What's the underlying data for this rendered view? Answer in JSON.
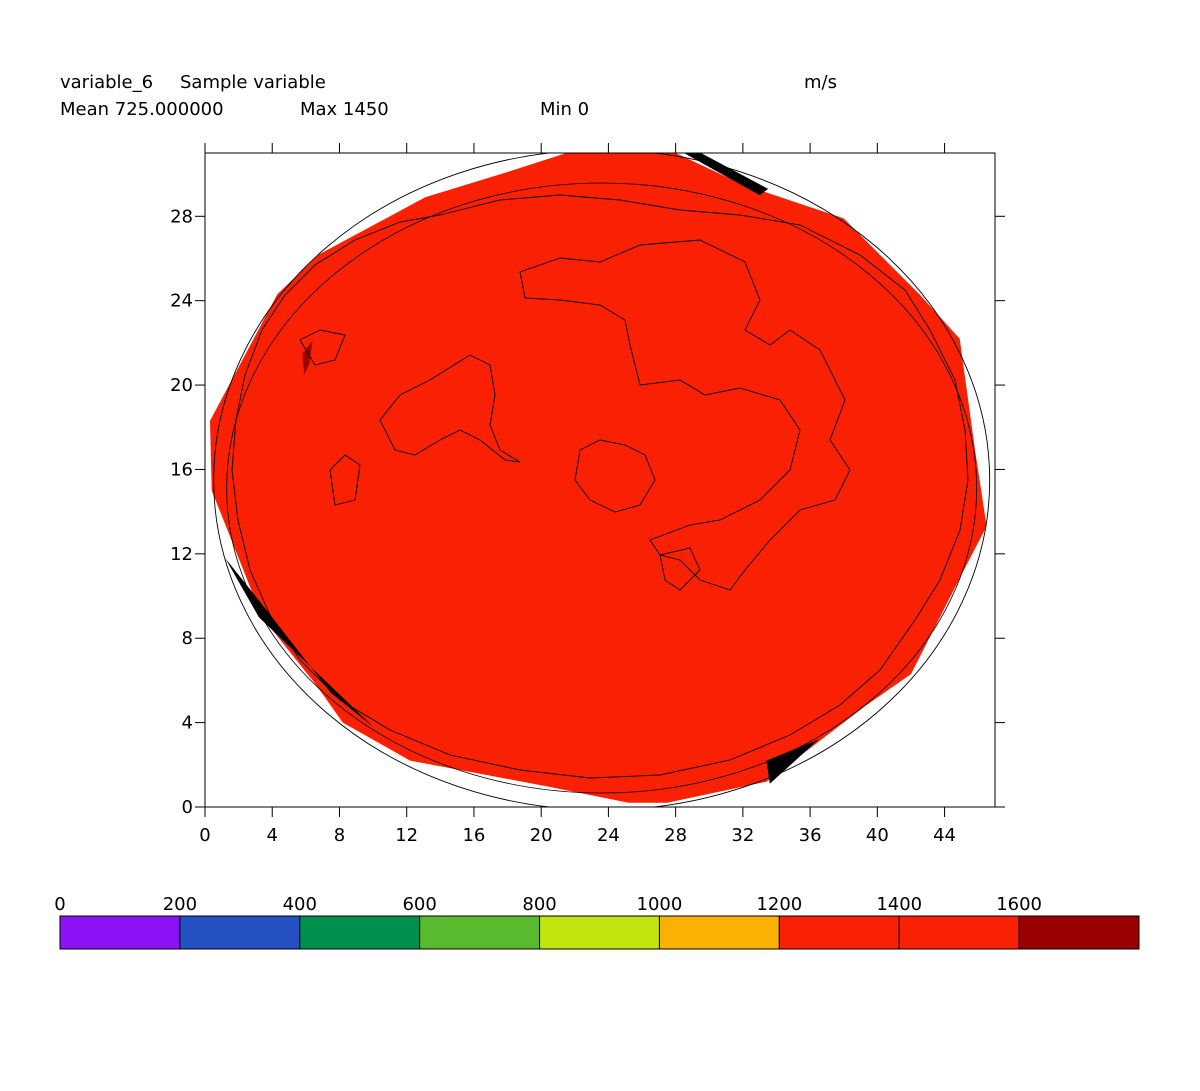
{
  "header": {
    "variable_name": "variable_6",
    "variable_desc": "Sample variable",
    "units": "m/s",
    "mean_text": "Mean 725.000000",
    "max_text": "Max 1450",
    "min_text": "Min 0"
  },
  "colors": {
    "field": "#fa2003",
    "dark_patch": "#9a0000",
    "missing": "#000000",
    "outline": "#000000"
  },
  "chart_data": {
    "type": "heatmap",
    "title": "variable_6 Sample variable",
    "units": "m/s",
    "xlabel": "",
    "ylabel": "",
    "xlim": [
      0,
      47
    ],
    "ylim": [
      0,
      31
    ],
    "x_ticks": [
      0,
      4,
      8,
      12,
      16,
      20,
      24,
      28,
      32,
      36,
      40,
      44
    ],
    "y_ticks": [
      0,
      4,
      8,
      12,
      16,
      20,
      24,
      28
    ],
    "grid": false,
    "stats": {
      "mean": 725.0,
      "max": 1450,
      "min": 0
    },
    "field_value_range": [
      1200,
      1400
    ],
    "domain_polygon": [
      [
        21.5,
        31
      ],
      [
        28,
        31
      ],
      [
        32,
        29.5
      ],
      [
        38,
        27.9
      ],
      [
        42.5,
        24.3
      ],
      [
        44.9,
        22.2
      ],
      [
        45.8,
        17.0
      ],
      [
        46.5,
        13.3
      ],
      [
        45.0,
        11.0
      ],
      [
        42.0,
        6.3
      ],
      [
        39.3,
        4.8
      ],
      [
        33.4,
        1.2
      ],
      [
        27.5,
        0.2
      ],
      [
        25.2,
        0.2
      ],
      [
        20.2,
        1.0
      ],
      [
        12.2,
        2.2
      ],
      [
        8.2,
        4.0
      ],
      [
        6.6,
        5.8
      ],
      [
        3.4,
        9.0
      ],
      [
        0.4,
        15.0
      ],
      [
        0.3,
        18.3
      ],
      [
        4.3,
        24.3
      ],
      [
        6.8,
        26.2
      ],
      [
        13.1,
        28.9
      ],
      [
        18.0,
        30.1
      ]
    ],
    "missing_regions": [
      [
        [
          28.5,
          31
        ],
        [
          33.0,
          29.0
        ],
        [
          33.5,
          29.3
        ],
        [
          29.5,
          31
        ]
      ],
      [
        [
          1.2,
          11.8
        ],
        [
          3.2,
          9.0
        ],
        [
          10.0,
          3.8
        ],
        [
          7.5,
          5.4
        ],
        [
          3.5,
          9.5
        ]
      ],
      [
        [
          33.4,
          2.2
        ],
        [
          36.5,
          3.2
        ],
        [
          33.6,
          1.1
        ]
      ]
    ],
    "high_regions": [
      [
        [
          5.8,
          21.5
        ],
        [
          6.4,
          22.1
        ],
        [
          6.2,
          21.0
        ],
        [
          5.9,
          20.5
        ]
      ]
    ],
    "colorbar": {
      "labels": [
        "0",
        "200",
        "400",
        "600",
        "800",
        "1000",
        "1200",
        "1400",
        "1600"
      ],
      "colors": [
        "#8b13f5",
        "#2551c2",
        "#00904d",
        "#58bb2e",
        "#c3e30e",
        "#fbb103",
        "#fa2003",
        "#fa2003",
        "#9a0000"
      ]
    }
  }
}
